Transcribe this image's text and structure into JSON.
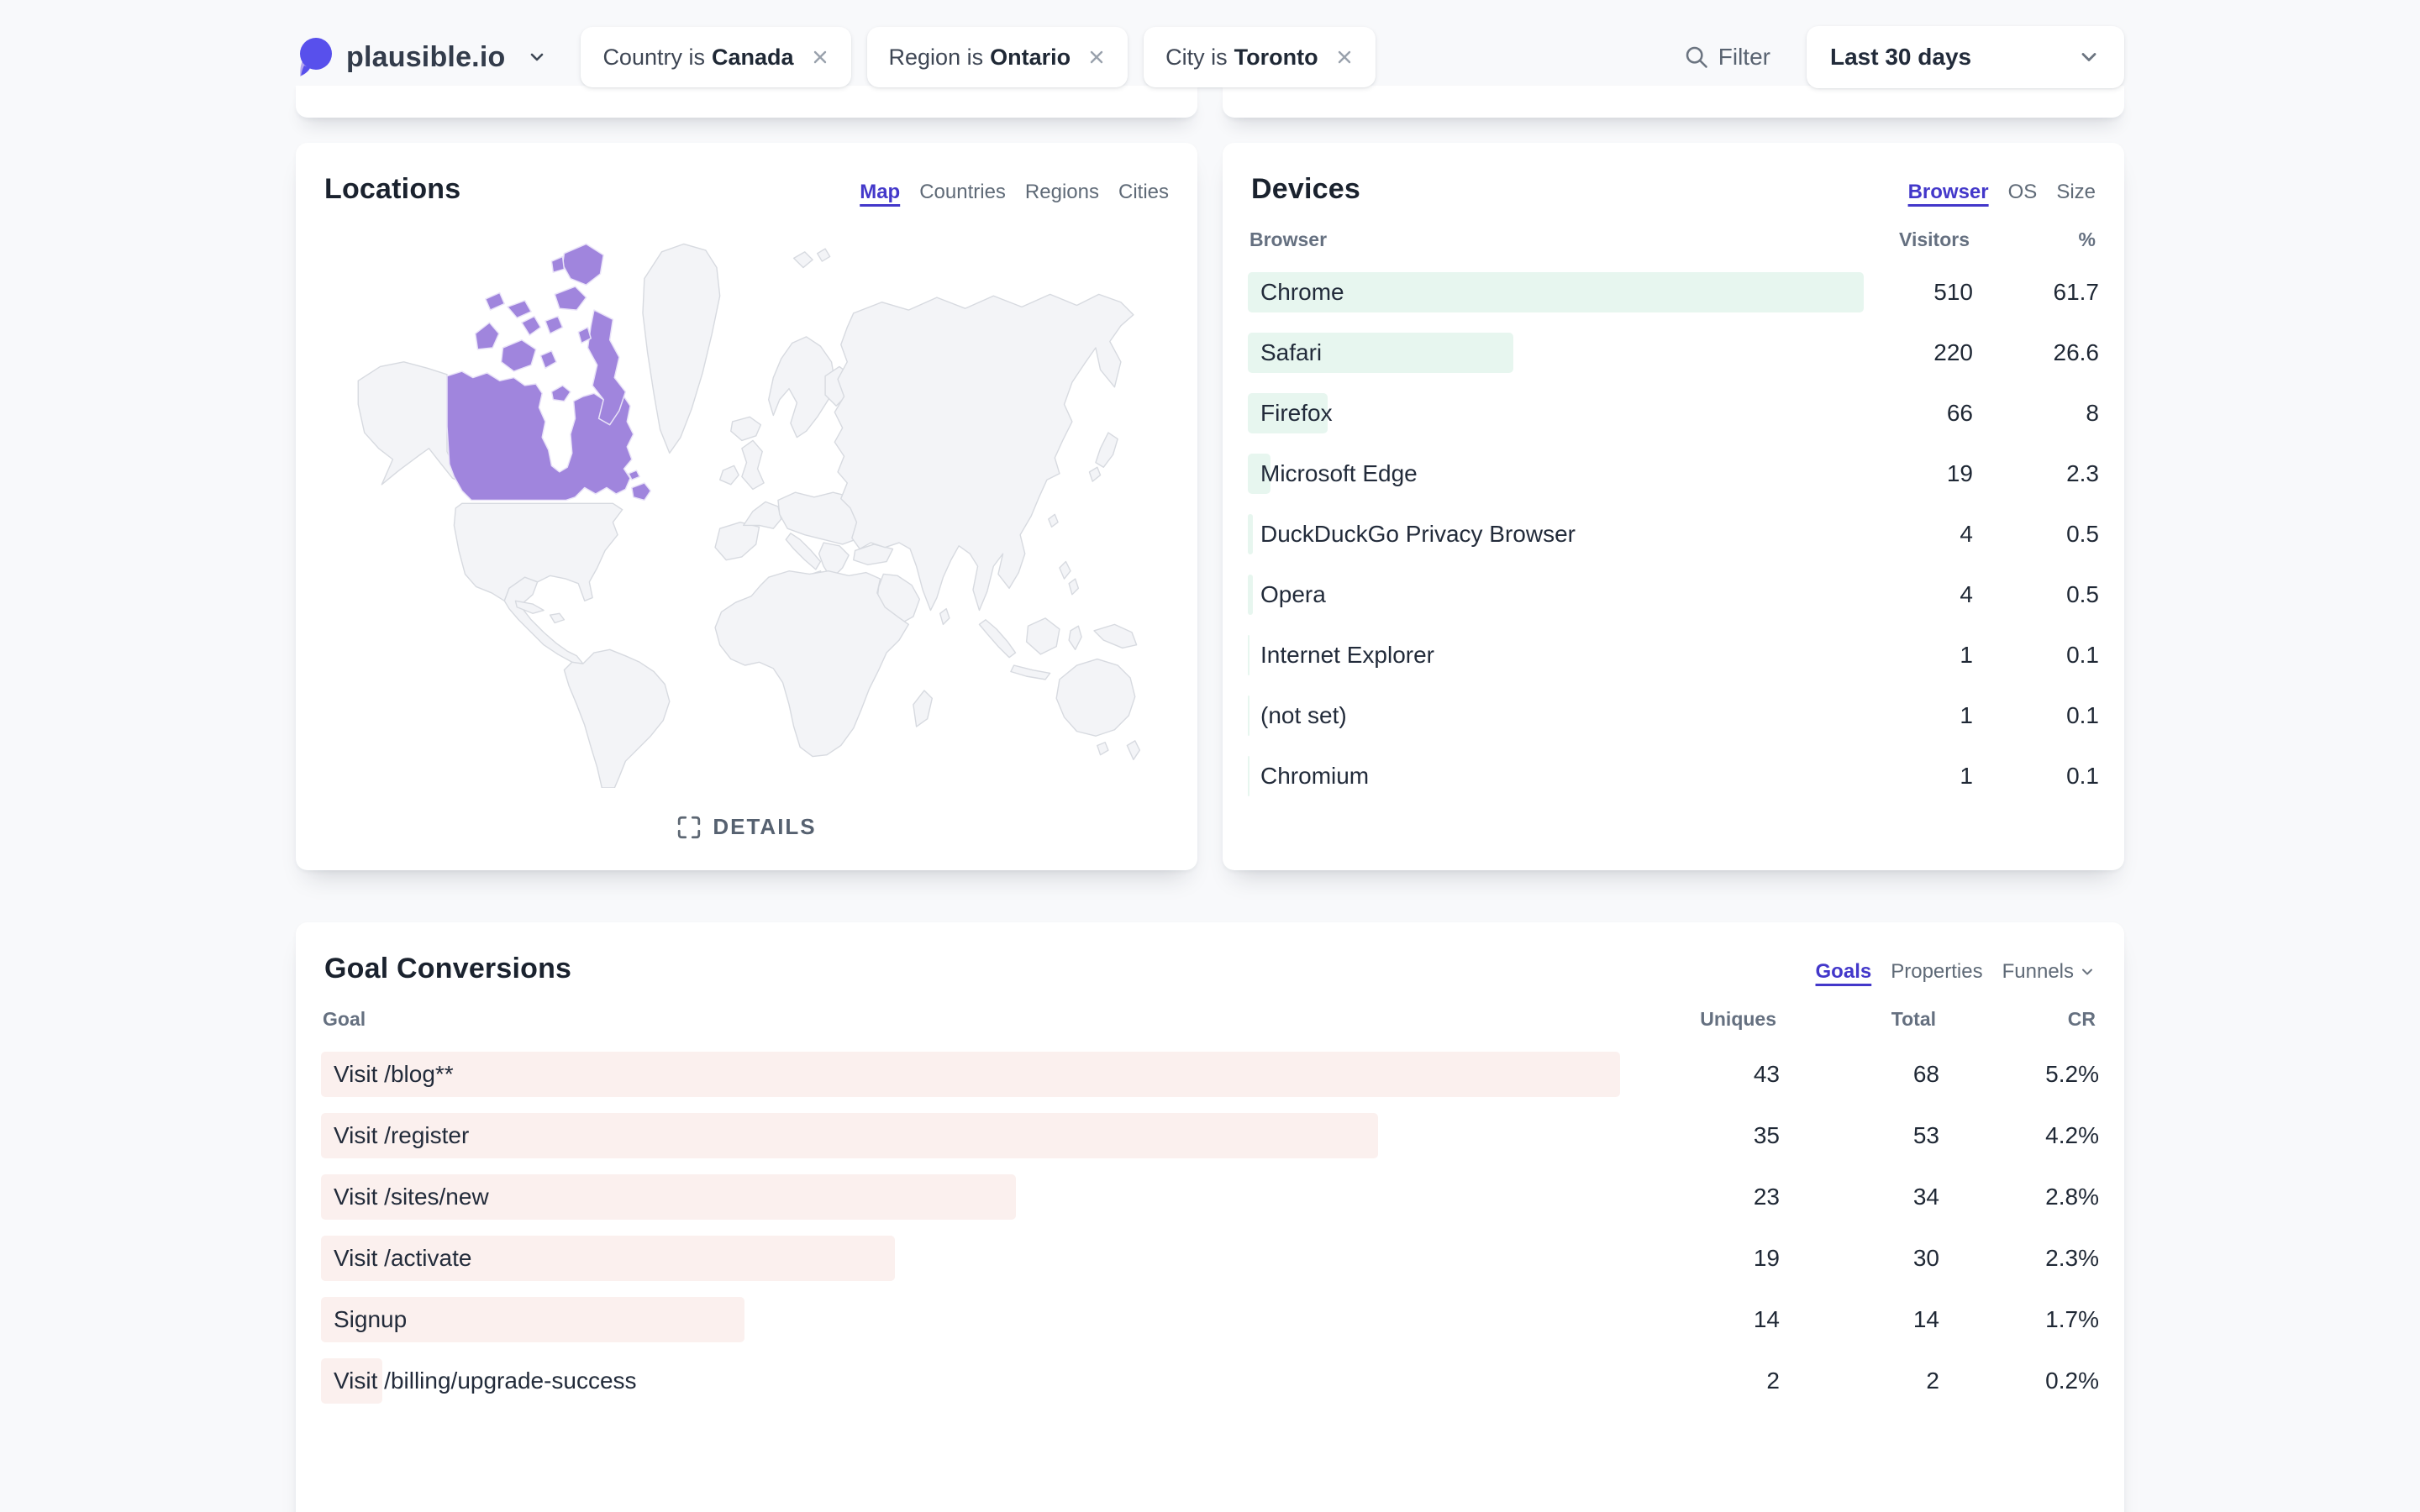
{
  "header": {
    "site": "plausible.io",
    "filters": [
      {
        "prefix": "Country is",
        "value": "Canada"
      },
      {
        "prefix": "Region is",
        "value": "Ontario"
      },
      {
        "prefix": "City is",
        "value": "Toronto"
      }
    ],
    "filter_label": "Filter",
    "date_range": "Last 30 days"
  },
  "locations": {
    "title": "Locations",
    "tabs": [
      {
        "label": "Map",
        "active": true
      },
      {
        "label": "Countries"
      },
      {
        "label": "Regions"
      },
      {
        "label": "Cities"
      }
    ],
    "details_label": "DETAILS",
    "highlighted_country": "Canada"
  },
  "devices": {
    "title": "Devices",
    "tabs": [
      {
        "label": "Browser",
        "active": true
      },
      {
        "label": "OS"
      },
      {
        "label": "Size"
      }
    ],
    "columns": {
      "name": "Browser",
      "visitors": "Visitors",
      "pct": "%"
    },
    "rows": [
      {
        "name": "Chrome",
        "visitors": "510",
        "pct": "61.7",
        "bar": 100
      },
      {
        "name": "Safari",
        "visitors": "220",
        "pct": "26.6",
        "bar": 43.1
      },
      {
        "name": "Firefox",
        "visitors": "66",
        "pct": "8",
        "bar": 12.9
      },
      {
        "name": "Microsoft Edge",
        "visitors": "19",
        "pct": "2.3",
        "bar": 3.7
      },
      {
        "name": "DuckDuckGo Privacy Browser",
        "visitors": "4",
        "pct": "0.5",
        "bar": 0.8
      },
      {
        "name": "Opera",
        "visitors": "4",
        "pct": "0.5",
        "bar": 0.8
      },
      {
        "name": "Internet Explorer",
        "visitors": "1",
        "pct": "0.1",
        "bar": 0.25
      },
      {
        "name": "(not set)",
        "visitors": "1",
        "pct": "0.1",
        "bar": 0.25
      },
      {
        "name": "Chromium",
        "visitors": "1",
        "pct": "0.1",
        "bar": 0.25
      }
    ]
  },
  "goals": {
    "title": "Goal Conversions",
    "tabs": [
      {
        "label": "Goals",
        "active": true
      },
      {
        "label": "Properties"
      },
      {
        "label": "Funnels",
        "chevron": true
      }
    ],
    "columns": {
      "name": "Goal",
      "uniques": "Uniques",
      "total": "Total",
      "cr": "CR"
    },
    "rows": [
      {
        "name": "Visit /blog**",
        "uniques": "43",
        "total": "68",
        "cr": "5.2%",
        "bar": 100
      },
      {
        "name": "Visit /register",
        "uniques": "35",
        "total": "53",
        "cr": "4.2%",
        "bar": 81.4
      },
      {
        "name": "Visit /sites/new",
        "uniques": "23",
        "total": "34",
        "cr": "2.8%",
        "bar": 53.5
      },
      {
        "name": "Visit /activate",
        "uniques": "19",
        "total": "30",
        "cr": "2.3%",
        "bar": 44.2
      },
      {
        "name": "Signup",
        "uniques": "14",
        "total": "14",
        "cr": "1.7%",
        "bar": 32.6
      },
      {
        "name": "Visit /billing/upgrade-success",
        "uniques": "2",
        "total": "2",
        "cr": "0.2%",
        "bar": 4.7
      }
    ]
  },
  "colors": {
    "accent": "#4338ca",
    "canada_highlight": "#a085dd",
    "device_bar": "#e7f6ef",
    "goal_bar": "#fbf0ee",
    "logo_purple": "#5850ec"
  }
}
